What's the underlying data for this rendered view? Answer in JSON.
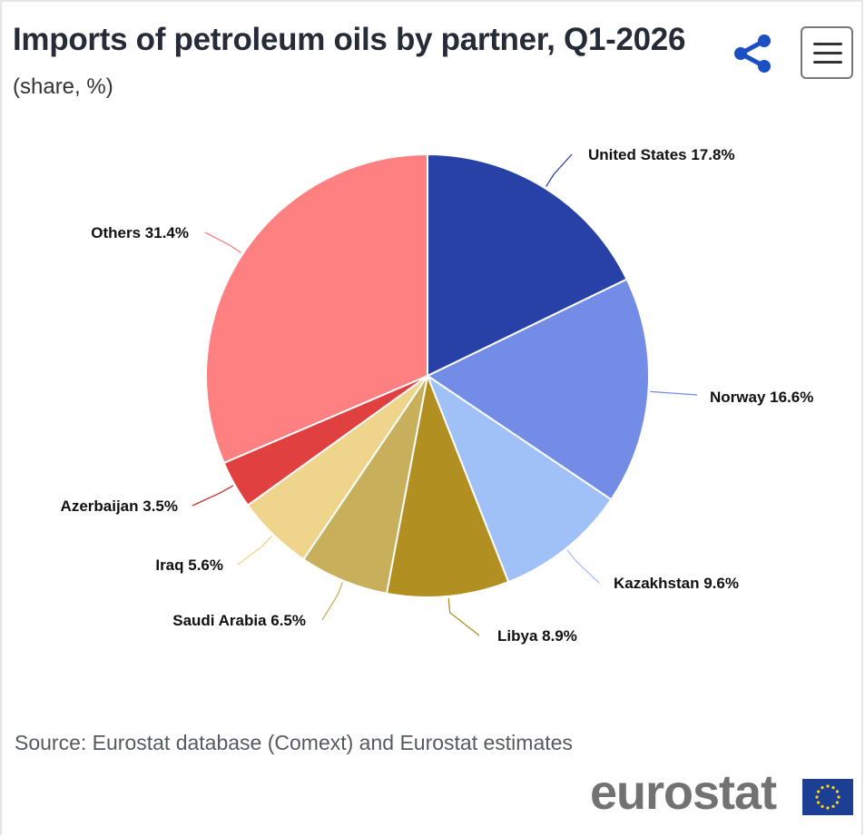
{
  "header": {
    "title": "Imports of petroleum oils by partner, Q1-2026",
    "subtitle": "(share, %)"
  },
  "toolbar": {
    "share_icon": "share-icon",
    "menu_icon": "hamburger-menu-icon"
  },
  "chart_data": {
    "type": "pie",
    "title": "Imports of petroleum oils by partner, Q1-2026",
    "subtitle": "(share, %)",
    "unit": "%",
    "slices": [
      {
        "label": "United States",
        "value": 17.8,
        "color": "#2741a6"
      },
      {
        "label": "Norway",
        "value": 16.6,
        "color": "#738ce5"
      },
      {
        "label": "Kazakhstan",
        "value": 9.6,
        "color": "#a0c0f8"
      },
      {
        "label": "Libya",
        "value": 8.9,
        "color": "#b28f21"
      },
      {
        "label": "Saudi Arabia",
        "value": 6.5,
        "color": "#c8af5c"
      },
      {
        "label": "Iraq",
        "value": 5.6,
        "color": "#efd48c"
      },
      {
        "label": "Azerbaijan",
        "value": 3.5,
        "color": "#e04040"
      },
      {
        "label": "Others",
        "value": 31.4,
        "color": "#ff8080"
      }
    ]
  },
  "footer": {
    "source": "Source: Eurostat database (Comext) and Eurostat estimates",
    "logo": "eurostat"
  }
}
